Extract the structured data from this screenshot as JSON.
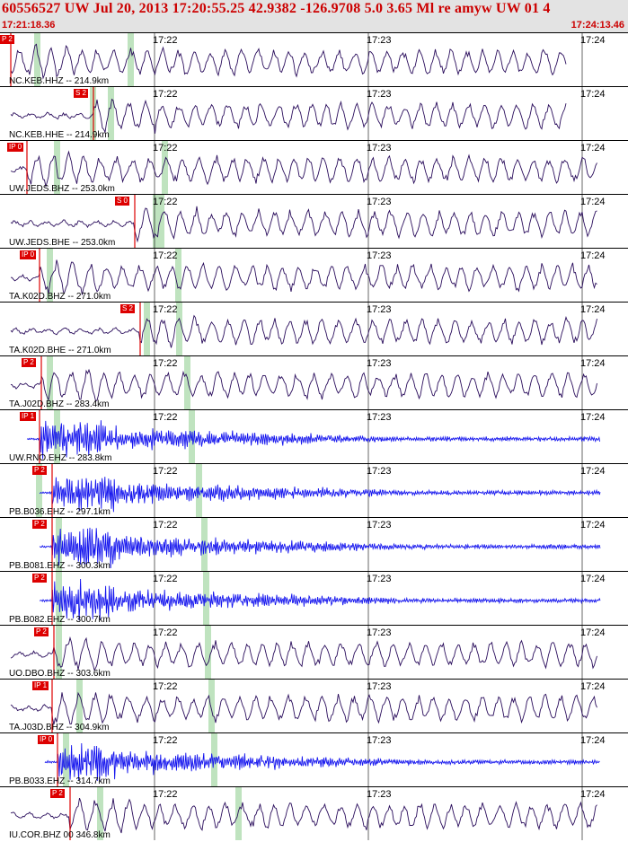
{
  "header": {
    "title": "60556527 UW Jul 20, 2013 17:20:55.25   42.9382 -126.9708  5.0 3.65 Ml re amyw UW 01   4",
    "start_time": "17:21:18.36",
    "end_time": "17:24:13.46"
  },
  "time_ticks": [
    "17:22",
    "17:23",
    "17:24"
  ],
  "colors": {
    "broadband_trace": "#2a0d5c",
    "short_period_trace": "#1515ee",
    "pick": "#dd0000",
    "window": "#bfe3bf"
  },
  "traces": [
    {
      "station": "NC.KEB.HHZ -- 214.9km",
      "pick": "P 2",
      "type": "broadband"
    },
    {
      "station": "NC.KEB.HHE -- 214.9km",
      "pick": "S 2",
      "type": "broadband"
    },
    {
      "station": "UW.JEDS.BHZ -- 253.0km",
      "pick": "IP 0",
      "type": "broadband"
    },
    {
      "station": "UW.JEDS.BHE -- 253.0km",
      "pick": "S 0",
      "type": "broadband"
    },
    {
      "station": "TA.K02D.BHZ -- 271.0km",
      "pick": "IP 0",
      "type": "broadband"
    },
    {
      "station": "TA.K02D.BHE -- 271.0km",
      "pick": "S 2",
      "type": "broadband"
    },
    {
      "station": "TA.J02D.BHZ -- 283.4km",
      "pick": "P 2",
      "type": "broadband"
    },
    {
      "station": "UW.RNO.EHZ -- 283.8km",
      "pick": "IP 1",
      "type": "short_period"
    },
    {
      "station": "PB.B036.EHZ -- 297.1km",
      "pick": "P 2",
      "type": "short_period"
    },
    {
      "station": "PB.B081.EHZ -- 300.3km",
      "pick": "P 2",
      "type": "short_period"
    },
    {
      "station": "PB.B082.EHZ -- 300.7km",
      "pick": "P 2",
      "type": "short_period"
    },
    {
      "station": "UO.DBO.BHZ -- 303.6km",
      "pick": "P 2",
      "type": "broadband"
    },
    {
      "station": "TA.J03D.BHZ -- 304.9km",
      "pick": "IP 1",
      "type": "broadband"
    },
    {
      "station": "PB.B033.EHZ -- 314.7km",
      "pick": "IP 0",
      "type": "short_period"
    },
    {
      "station": "IU.COR.BHZ 00 346.8km",
      "pick": "P 2",
      "type": "broadband"
    }
  ]
}
